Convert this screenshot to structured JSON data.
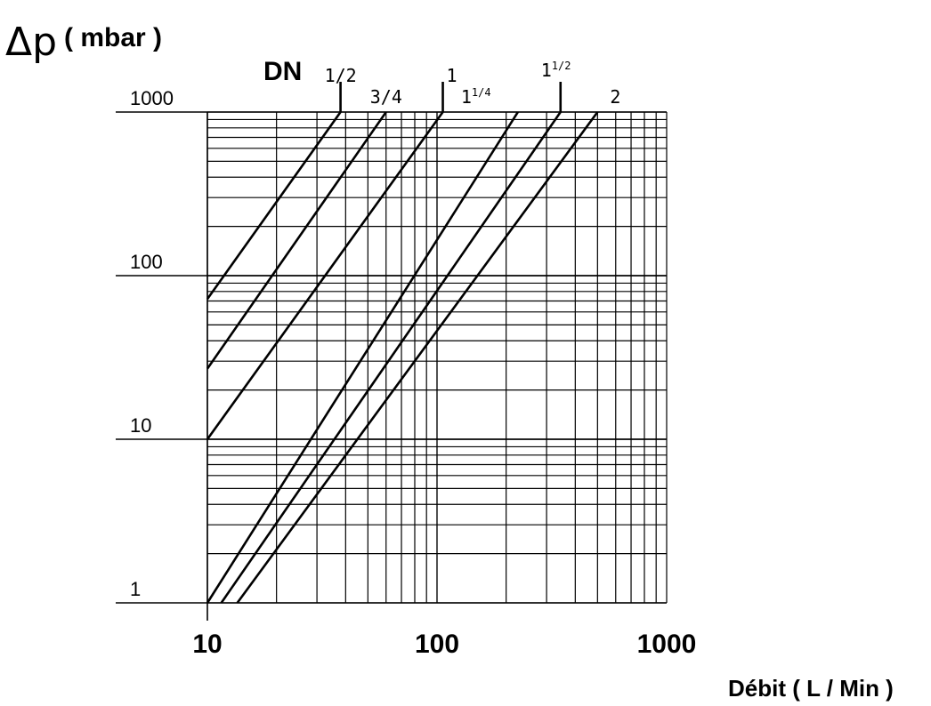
{
  "chart_data": {
    "type": "line",
    "x_scale": "log",
    "y_scale": "log",
    "xlim": [
      10,
      1000
    ],
    "ylim": [
      1,
      1000
    ],
    "grid": true,
    "xlabel": "Débit ( L / Min )",
    "ylabel_symbol": "Δp",
    "ylabel": "( mbar )",
    "series_prefix": "DN",
    "x_ticks": [
      "10",
      "100",
      "1000"
    ],
    "y_ticks": [
      "1",
      "10",
      "100",
      "1000"
    ],
    "series": [
      {
        "name": "1/2",
        "label_main": "1/2",
        "label_sup": "",
        "x": [
          10,
          38
        ],
        "y": [
          72,
          1000
        ]
      },
      {
        "name": "3/4",
        "label_main": "3/4",
        "label_sup": "",
        "x": [
          10,
          60
        ],
        "y": [
          27,
          1000
        ]
      },
      {
        "name": "1",
        "label_main": "1",
        "label_sup": "",
        "x": [
          10,
          106
        ],
        "y": [
          10,
          1000
        ]
      },
      {
        "name": "1 1/4",
        "label_main": "1",
        "label_sup": "1/4",
        "x": [
          10,
          225
        ],
        "y": [
          1,
          1000
        ]
      },
      {
        "name": "1 1/2",
        "label_main": "1",
        "label_sup": "1/2",
        "x": [
          11.5,
          345
        ],
        "y": [
          1,
          1000
        ]
      },
      {
        "name": "2",
        "label_main": "2",
        "label_sup": "",
        "x": [
          13.5,
          500
        ],
        "y": [
          1,
          1000
        ]
      }
    ]
  }
}
